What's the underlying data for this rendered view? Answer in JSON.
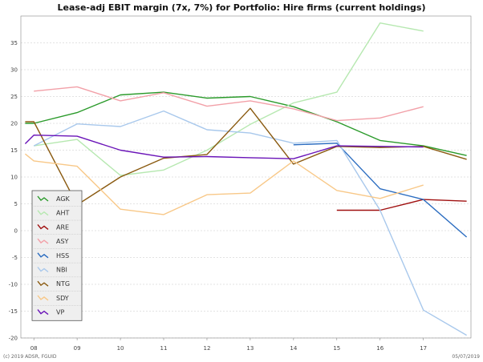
{
  "chart_data": {
    "type": "line",
    "title": "Lease-adj EBIT margin (7x, 7%) for Portfolio: Hire firms (current holdings)",
    "xlabel": "",
    "ylabel": "",
    "x": [
      2008,
      2009,
      2010,
      2011,
      2012,
      2013,
      2014,
      2015,
      2016,
      2017,
      2018
    ],
    "x_tick_labels": [
      "08",
      "09",
      "10",
      "11",
      "12",
      "13",
      "14",
      "15",
      "16",
      "17"
    ],
    "x_tick_values": [
      2008,
      2009,
      2010,
      2011,
      2012,
      2013,
      2014,
      2015,
      2016,
      2017
    ],
    "xlim": [
      2007.7,
      2018.1
    ],
    "ylim": [
      -20,
      40
    ],
    "y_ticks": [
      -20,
      -15,
      -10,
      -5,
      0,
      5,
      10,
      15,
      20,
      25,
      30,
      35
    ],
    "y_tick_labels": [
      "-20",
      "-15",
      "-10",
      "-5",
      "0",
      "5",
      "10",
      "15",
      "20",
      "25",
      "30",
      "35"
    ],
    "grid": true,
    "legend_position": "bottom-left",
    "series": [
      {
        "name": "AGK",
        "color": "#2a9a2a",
        "x": [
          2007.8,
          2008,
          2009,
          2010,
          2011,
          2012,
          2013,
          2014,
          2015,
          2016,
          2017,
          2018
        ],
        "values": [
          20,
          20,
          22,
          25.3,
          25.8,
          24.7,
          25,
          23.1,
          20.3,
          16.8,
          15.8,
          14
        ]
      },
      {
        "name": "AHT",
        "color": "#b6e8b0",
        "x": [
          2008,
          2009,
          2010,
          2011,
          2012,
          2013,
          2014,
          2015,
          2016,
          2017
        ],
        "values": [
          15.8,
          17,
          10.3,
          11.3,
          15,
          19.8,
          23.8,
          25.8,
          38.7,
          37.2
        ]
      },
      {
        "name": "ARE",
        "color": "#a01010",
        "x": [
          2015,
          2016,
          2017,
          2018
        ],
        "values": [
          3.8,
          3.8,
          5.8,
          5.5
        ]
      },
      {
        "name": "ASY",
        "color": "#f2a0a8",
        "x": [
          2008,
          2009,
          2010,
          2011,
          2012,
          2013,
          2014,
          2015,
          2016,
          2017
        ],
        "values": [
          26,
          26.8,
          24.2,
          25.7,
          23.2,
          24.2,
          22.7,
          20.5,
          21,
          23.1
        ]
      },
      {
        "name": "HSS",
        "color": "#2a6cc0",
        "x": [
          2014,
          2015,
          2016,
          2017,
          2018
        ],
        "values": [
          16,
          16.3,
          7.8,
          5.8,
          -1.2
        ]
      },
      {
        "name": "NBI",
        "color": "#a8c8ec",
        "x": [
          2008,
          2009,
          2010,
          2011,
          2012,
          2013,
          2014,
          2015,
          2016,
          2017,
          2018
        ],
        "values": [
          15.8,
          19.9,
          19.4,
          22.3,
          18.8,
          18.2,
          16.3,
          16.8,
          3.8,
          -14.8,
          -19.5
        ]
      },
      {
        "name": "NTG",
        "color": "#8a5a10",
        "x": [
          2007.8,
          2008,
          2009,
          2010,
          2011,
          2012,
          2013,
          2014,
          2015,
          2016,
          2017,
          2018
        ],
        "values": [
          20.3,
          20.3,
          4.8,
          10,
          13.5,
          14.2,
          22.8,
          12.4,
          15.7,
          15.5,
          15.7,
          13.3
        ]
      },
      {
        "name": "SDY",
        "color": "#f8c888",
        "x": [
          2007.8,
          2008,
          2009,
          2010,
          2011,
          2012,
          2013,
          2014,
          2015,
          2016,
          2017,
          2018
        ],
        "values": [
          14.3,
          13,
          12,
          4,
          3,
          6.7,
          7,
          13,
          7.5,
          6,
          8.5,
          null
        ]
      },
      {
        "name": "VP",
        "color": "#6a14b8",
        "x": [
          2007.8,
          2008,
          2009,
          2010,
          2011,
          2012,
          2013,
          2014,
          2015,
          2016,
          2017
        ],
        "values": [
          16.2,
          17.8,
          17.6,
          15,
          13.7,
          13.8,
          13.6,
          13.4,
          15.8,
          15.7,
          15.6
        ]
      }
    ],
    "footer_left": "(c) 2019 ADSR, FGUID",
    "footer_right": "05/07/2019"
  }
}
